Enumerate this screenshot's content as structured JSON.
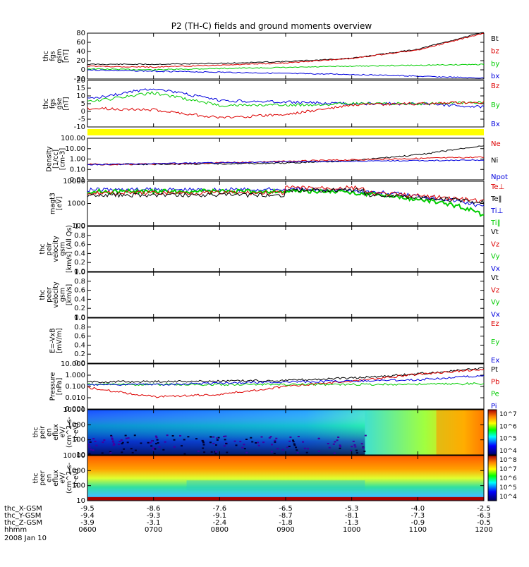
{
  "title": "P2 (TH-C) fields and ground moments overview",
  "colors": {
    "black": "#000000",
    "red": "#dd0000",
    "green": "#00cc00",
    "blue": "#0000dd",
    "yellow": "#ffff00"
  },
  "panels": [
    {
      "id": "fgs-gsm",
      "ylabel": [
        "thc",
        "fgs",
        "gsm",
        "[nT]"
      ],
      "yticks": [
        "80",
        "60",
        "40",
        "20",
        "0",
        "-20"
      ],
      "legend": [
        {
          "text": "Bt",
          "color": "black"
        },
        {
          "text": "bz",
          "color": "red"
        },
        {
          "text": "by",
          "color": "green"
        },
        {
          "text": "bx",
          "color": "blue"
        }
      ]
    },
    {
      "id": "fgs-gse",
      "ylabel": [
        "thc",
        "fgs",
        "gse",
        "[nT]"
      ],
      "yticks": [
        "20",
        "15",
        "10",
        "5",
        "0",
        "-5",
        "-10"
      ],
      "legend": [
        {
          "text": "Bz",
          "color": "red"
        },
        {
          "text": "By",
          "color": "green"
        },
        {
          "text": "Bx",
          "color": "blue"
        }
      ]
    },
    {
      "id": "density",
      "ylabel": [
        "Density",
        "[1/cc]",
        "[cm-3]"
      ],
      "yticks": [
        "100.00",
        "10.00",
        "1.00",
        "0.10",
        "0.01"
      ],
      "legend": [
        {
          "text": "Ne",
          "color": "red"
        },
        {
          "text": "Ni",
          "color": "black"
        },
        {
          "text": "Npot",
          "color": "blue"
        }
      ]
    },
    {
      "id": "temperature",
      "ylabel": [
        "magt3",
        "[eV]"
      ],
      "yticks": [
        "10000",
        "1000",
        "100"
      ],
      "legend": [
        {
          "text": "Te⊥",
          "color": "red"
        },
        {
          "text": "Te‖",
          "color": "black"
        },
        {
          "text": "Ti⊥",
          "color": "blue"
        },
        {
          "text": "Ti‖",
          "color": "green"
        }
      ]
    },
    {
      "id": "peir-velocity",
      "ylabel": [
        "thc",
        "peir",
        "velocity",
        "gsm",
        "[km/s] (All Qs)"
      ],
      "yticks": [
        "1.0",
        "0.8",
        "0.6",
        "0.4",
        "0.2",
        "0.0"
      ],
      "legend": [
        {
          "text": "Vt",
          "color": "black"
        },
        {
          "text": "Vz",
          "color": "red"
        },
        {
          "text": "Vy",
          "color": "green"
        },
        {
          "text": "Vx",
          "color": "blue"
        }
      ]
    },
    {
      "id": "peer-velocity",
      "ylabel": [
        "thc",
        "peer",
        "velocity",
        "gsm",
        "[km/s]"
      ],
      "yticks": [
        "1.0",
        "0.8",
        "0.6",
        "0.4",
        "0.2",
        "0.0"
      ],
      "legend": [
        {
          "text": "Vt",
          "color": "black"
        },
        {
          "text": "Vz",
          "color": "red"
        },
        {
          "text": "Vy",
          "color": "green"
        },
        {
          "text": "Vx",
          "color": "blue"
        }
      ]
    },
    {
      "id": "efield",
      "ylabel": [
        "E=-VxB",
        "[mV/m]"
      ],
      "yticks": [
        "1.0",
        "0.8",
        "0.6",
        "0.4",
        "0.2",
        "0.0"
      ],
      "legend": [
        {
          "text": "Ez",
          "color": "red"
        },
        {
          "text": "Ey",
          "color": "green"
        },
        {
          "text": "Ex",
          "color": "blue"
        }
      ]
    },
    {
      "id": "pressure",
      "ylabel": [
        "Pressure",
        "[nPa]"
      ],
      "yticks": [
        "10.000",
        "1.000",
        "0.100",
        "0.010",
        "0.001"
      ],
      "legend": [
        {
          "text": "Pt",
          "color": "black"
        },
        {
          "text": "Pb",
          "color": "red"
        },
        {
          "text": "Pe",
          "color": "green"
        },
        {
          "text": "Pi",
          "color": "blue"
        }
      ]
    },
    {
      "id": "peir-spec",
      "ylabel": [
        "thc",
        "peir",
        "en",
        "eflux",
        "eV/",
        "(cm^2-s-",
        "sr-eV)"
      ],
      "yticks": [
        "10000",
        "1000",
        "100",
        "10"
      ],
      "colorbar": [
        "10^7",
        "10^6",
        "10^5",
        "10^4"
      ]
    },
    {
      "id": "peer-spec",
      "ylabel": [
        "thc",
        "peer",
        "en",
        "eflux",
        "eV/",
        "(cm^2-s-",
        "sr-eV)"
      ],
      "yticks": [
        "10000",
        "1000",
        "100",
        "10"
      ],
      "colorbar": [
        "10^8",
        "10^7",
        "10^6",
        "10^5",
        "10^4"
      ]
    }
  ],
  "ephemeris": [
    {
      "label": "thc_X-GSM",
      "values": [
        "-9.5",
        "-8.6",
        "-7.6",
        "-6.5",
        "-5.3",
        "-4.0",
        "-2.5"
      ]
    },
    {
      "label": "thc_Y-GSM",
      "values": [
        "-9.4",
        "-9.3",
        "-9.1",
        "-8.7",
        "-8.1",
        "-7.3",
        "-6.3"
      ]
    },
    {
      "label": "thc_Z-GSM",
      "values": [
        "-3.9",
        "-3.1",
        "-2.4",
        "-1.8",
        "-1.3",
        "-0.9",
        "-0.5"
      ]
    },
    {
      "label": "hhmm",
      "values": [
        "0600",
        "0700",
        "0800",
        "0900",
        "1000",
        "1100",
        "1200"
      ]
    }
  ],
  "date": "2008 Jan 10",
  "chart_data": {
    "type": "line",
    "x": [
      "0600",
      "0700",
      "0800",
      "0900",
      "1000",
      "1100",
      "1200"
    ],
    "xlabel": "hhmm",
    "series_approx": {
      "fgs_gsm_Bt": [
        12,
        12,
        14,
        18,
        25,
        45,
        82
      ],
      "fgs_gsm_bz": [
        8,
        6,
        10,
        15,
        25,
        43,
        80
      ],
      "fgs_gsm_by": [
        2,
        0,
        3,
        5,
        8,
        10,
        12
      ],
      "fgs_gsm_bx": [
        0,
        -3,
        -5,
        -8,
        -10,
        -14,
        -18
      ],
      "fgs_gse_Bx": [
        8,
        15,
        7,
        6,
        5,
        5,
        3
      ],
      "fgs_gse_By": [
        6,
        12,
        4,
        4,
        5,
        5,
        6
      ],
      "fgs_gse_Bz": [
        2,
        1,
        -4,
        -2,
        4,
        5,
        6
      ],
      "density_Ni": [
        0.3,
        0.32,
        0.35,
        0.4,
        0.7,
        2.5,
        20
      ],
      "pressure_Pt": [
        0.25,
        0.28,
        0.3,
        0.35,
        0.55,
        1.3,
        4
      ],
      "pressure_Pb": [
        0.08,
        0.012,
        0.02,
        0.1,
        0.3,
        1.2,
        3.5
      ],
      "pressure_Pe": [
        0.15,
        0.15,
        0.15,
        0.15,
        0.15,
        0.16,
        0.18
      ],
      "pressure_Pi": [
        0.15,
        0.15,
        0.2,
        0.25,
        0.3,
        0.4,
        0.9
      ]
    }
  }
}
